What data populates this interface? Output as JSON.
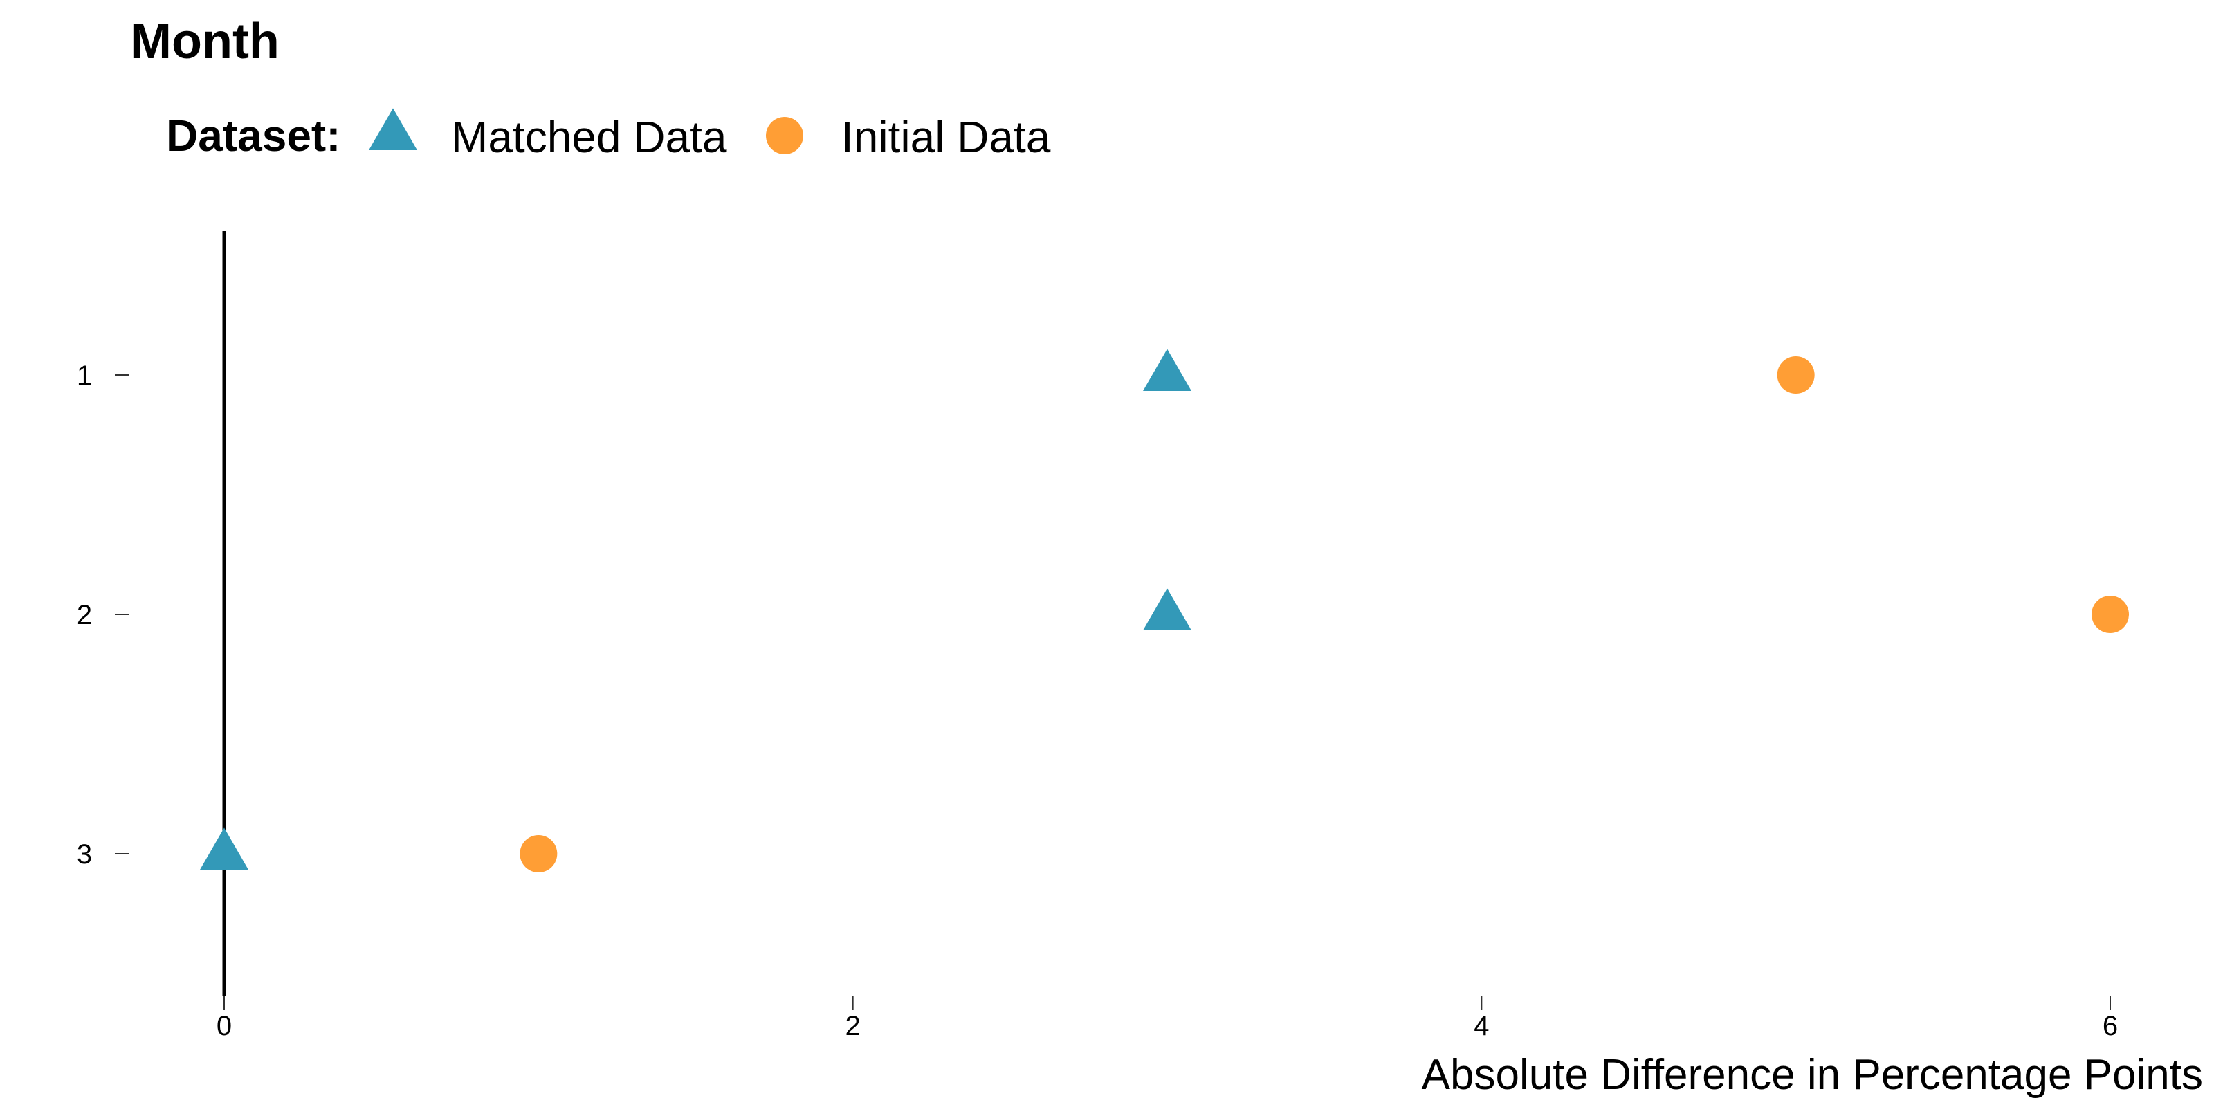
{
  "chart_data": {
    "type": "scatter",
    "title": "Month",
    "xlabel": "Absolute Difference in Percentage Points",
    "ylabel": "",
    "xlim": [
      0,
      6
    ],
    "x_ticks": [
      "0",
      "2",
      "4",
      "6"
    ],
    "y_categories": [
      "1",
      "2",
      "3"
    ],
    "grid": false,
    "legend": {
      "title": "Dataset:",
      "placement": "top-left"
    },
    "series": [
      {
        "name": "Matched Data",
        "marker": "triangle",
        "color": "#3399B8",
        "points": [
          {
            "y": "1",
            "x": 3
          },
          {
            "y": "2",
            "x": 3
          },
          {
            "y": "3",
            "x": 0
          }
        ]
      },
      {
        "name": "Initial Data",
        "marker": "circle",
        "color": "#FF9E35",
        "points": [
          {
            "y": "1",
            "x": 5
          },
          {
            "y": "2",
            "x": 6
          },
          {
            "y": "3",
            "x": 1
          }
        ]
      }
    ]
  }
}
